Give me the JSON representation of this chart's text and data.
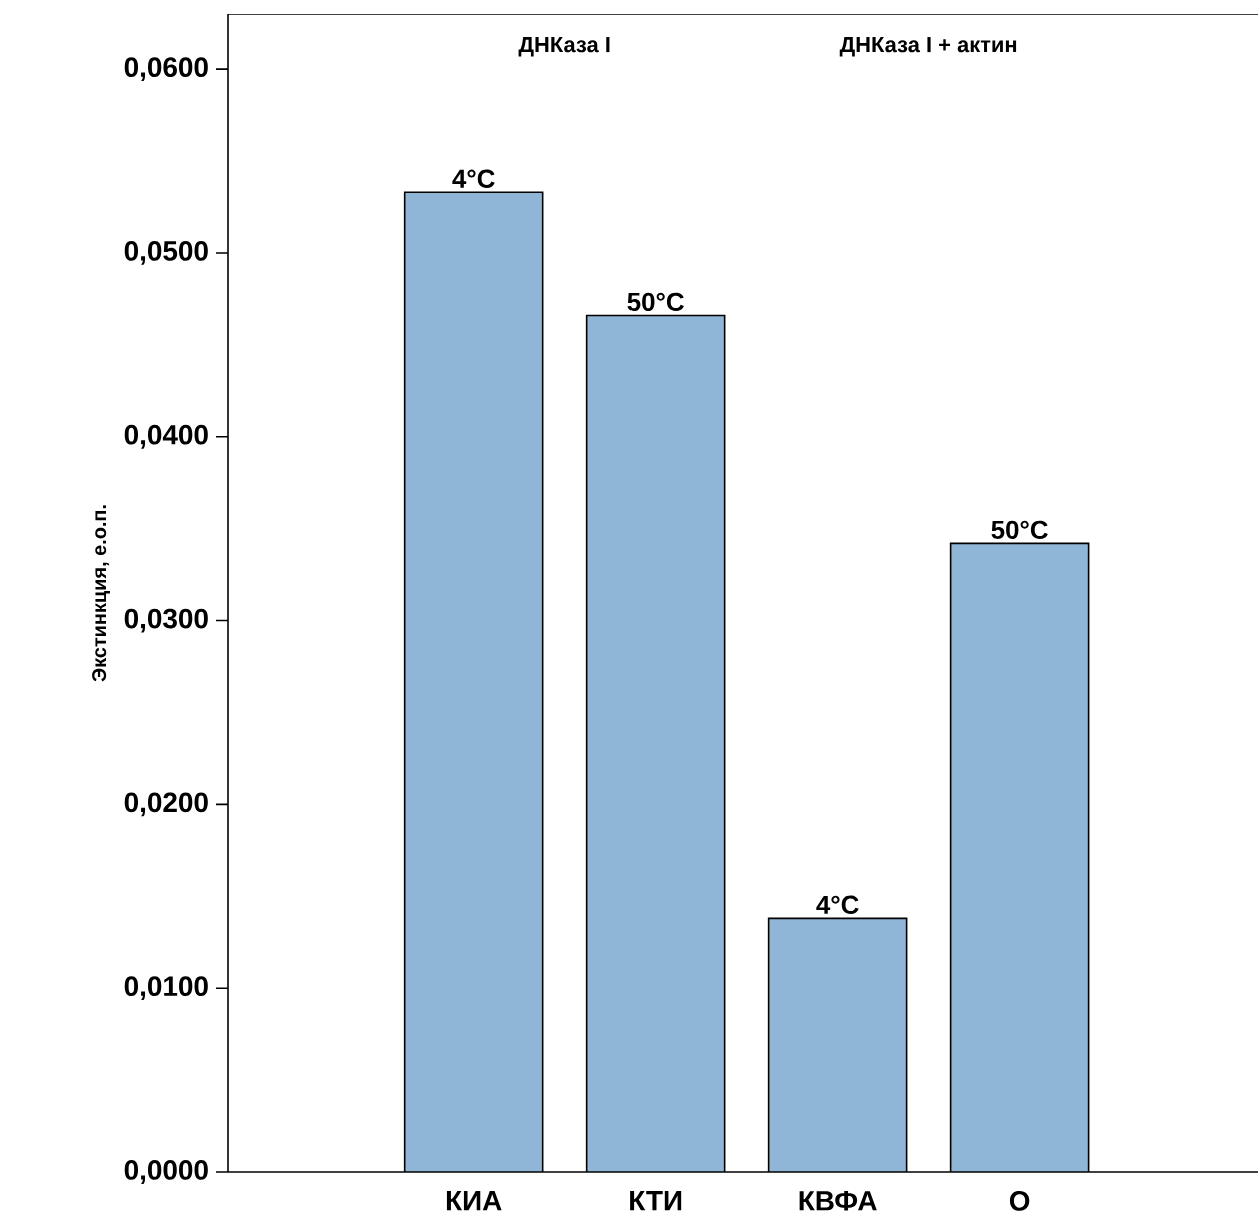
{
  "chart_data": {
    "type": "bar",
    "ylabel": "Экстинкция, е.о.п.",
    "categories": [
      "КИА",
      "КТИ",
      "КВФА",
      "О"
    ],
    "values": [
      0.0533,
      0.0466,
      0.0138,
      0.0342
    ],
    "color": "#8fb6d6",
    "ylim": [
      0,
      0.063
    ],
    "yticks": [
      {
        "value": 0,
        "label": "0,0000"
      },
      {
        "value": 0.01,
        "label": "0,0100"
      },
      {
        "value": 0.02,
        "label": "0,0200"
      },
      {
        "value": 0.03,
        "label": "0,0300"
      },
      {
        "value": 0.04,
        "label": "0,0400"
      },
      {
        "value": 0.05,
        "label": "0,0500"
      },
      {
        "value": 0.06,
        "label": "0,0600"
      }
    ],
    "grid": false,
    "annotations": [
      "ДНКаза I",
      "ДНКаза I + актин",
      {
        "text": "4°C",
        "x": "КИА",
        "y": 0.0533
      },
      {
        "text": "50°C",
        "x": "КТИ",
        "y": 0.0466
      },
      {
        "text": "4°C",
        "x": "КВФА",
        "y": 0.0138
      },
      {
        "text": "50°C",
        "x": "О",
        "y": 0.0342
      }
    ]
  }
}
